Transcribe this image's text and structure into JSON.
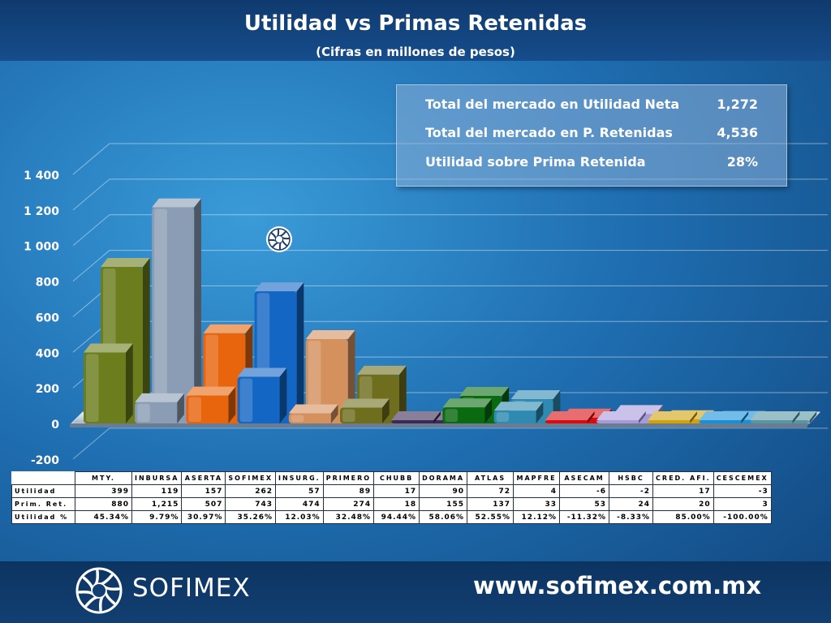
{
  "title": "Utilidad vs Primas Retenidas",
  "subtitle": "(Cifras en millones de pesos)",
  "summary": [
    {
      "label": "Total del mercado en Utilidad Neta",
      "value": "1,272"
    },
    {
      "label": "Total del mercado en P. Retenidas",
      "value": "4,536"
    },
    {
      "label": "Utilidad sobre Prima Retenida",
      "value": "28%"
    }
  ],
  "table": {
    "headers": [
      "MTY.",
      "INBURSA",
      "ASERTA",
      "SOFIMEX",
      "INSURG.",
      "PRIMERO",
      "CHUBB",
      "DORAMA",
      "ATLAS",
      "MAPFRE",
      "ASECAM",
      "HSBC",
      "CRED. AFI.",
      "CESCEMEX"
    ],
    "rows": [
      {
        "label": "Utilidad",
        "values": [
          "399",
          "119",
          "157",
          "262",
          "57",
          "89",
          "17",
          "90",
          "72",
          "4",
          "-6",
          "-2",
          "17",
          "-3"
        ]
      },
      {
        "label": "Prim. Ret.",
        "values": [
          "880",
          "1,215",
          "507",
          "743",
          "474",
          "274",
          "18",
          "155",
          "137",
          "33",
          "53",
          "24",
          "20",
          "3"
        ]
      },
      {
        "label": "Utilidad %",
        "values": [
          "45.34%",
          "9.79%",
          "30.97%",
          "35.26%",
          "12.03%",
          "32.48%",
          "94.44%",
          "58.06%",
          "52.55%",
          "12.12%",
          "-11.32%",
          "-8.33%",
          "85.00%",
          "-100.00%"
        ]
      }
    ]
  },
  "chart_data": {
    "type": "bar",
    "categories": [
      "MTY.",
      "INBURSA",
      "ASERTA",
      "SOFIMEX",
      "INSURG.",
      "PRIMERO",
      "CHUBB",
      "DORAMA",
      "ATLAS",
      "MAPFRE",
      "ASECAM",
      "HSBC",
      "CRED. AFI.",
      "CESCEMEX"
    ],
    "series": [
      {
        "name": "Utilidad",
        "values": [
          399,
          119,
          157,
          262,
          57,
          89,
          17,
          90,
          72,
          4,
          -6,
          -2,
          17,
          -3
        ]
      },
      {
        "name": "Prim. Ret.",
        "values": [
          880,
          1215,
          507,
          743,
          474,
          274,
          18,
          155,
          137,
          33,
          53,
          24,
          20,
          3
        ]
      }
    ],
    "ylim": [
      -200,
      1400
    ],
    "yticks": [
      -200,
      0,
      200,
      400,
      600,
      800,
      1000,
      1200,
      1400
    ],
    "ytick_labels": [
      "-200",
      "0",
      "200",
      "400",
      "600",
      "800",
      "1 000",
      "1 200",
      "1 400"
    ],
    "grid": true,
    "colors": [
      "#6b7d1c",
      "#8b9db4",
      "#e8650e",
      "#1466c4",
      "#d4915e",
      "#6e6e1e",
      "#3a2a55",
      "#0a6a10",
      "#2e8ab0",
      "#d80c10",
      "#a69ad8",
      "#d0a20c",
      "#1890d8",
      "#5896a4"
    ]
  },
  "footer": {
    "brand": "SOFIMEX",
    "url": "www.sofimex.com.mx"
  }
}
